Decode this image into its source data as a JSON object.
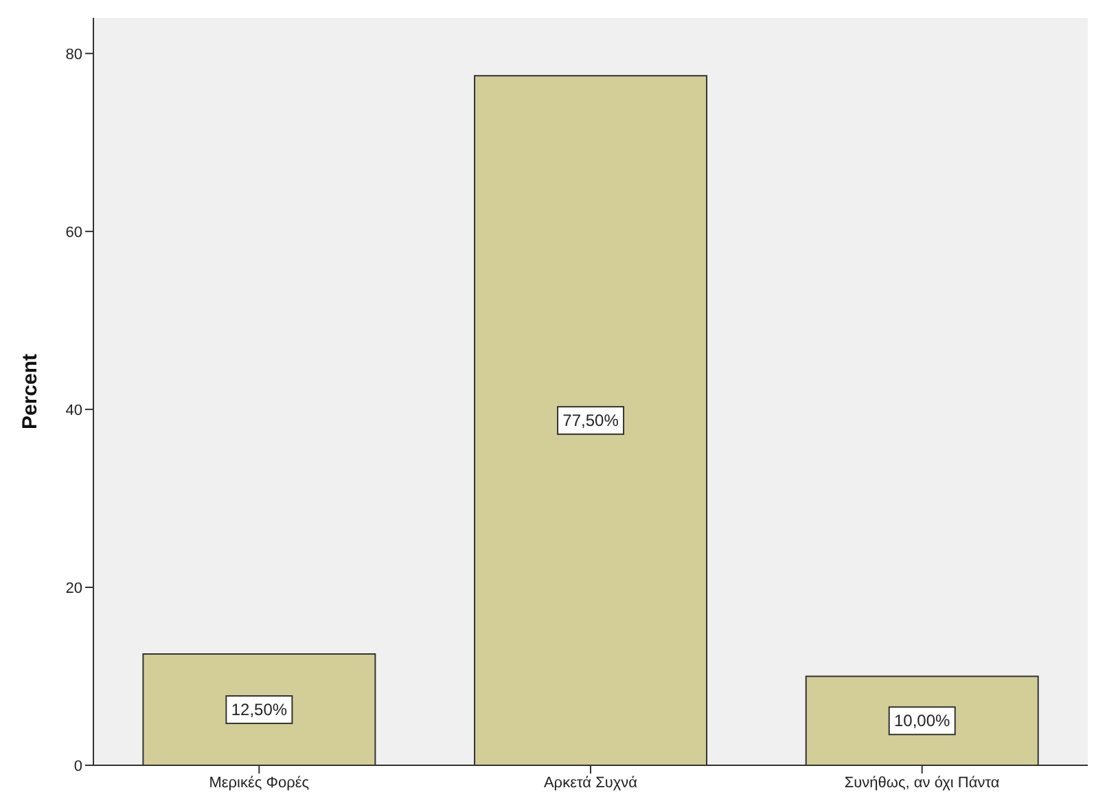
{
  "chart_data": {
    "type": "bar",
    "ylabel": "Percent",
    "categories": [
      "Μερικές Φορές",
      "Αρκετά Συχνά",
      "Συνήθως, αν όχι Πάντα"
    ],
    "values": [
      12.5,
      77.5,
      10.0
    ],
    "value_labels": [
      "12,50%",
      "77,50%",
      "10,00%"
    ],
    "color": "#d3ce97",
    "ylim": [
      0,
      84
    ],
    "yticks": [
      0,
      20,
      40,
      60,
      80
    ]
  }
}
